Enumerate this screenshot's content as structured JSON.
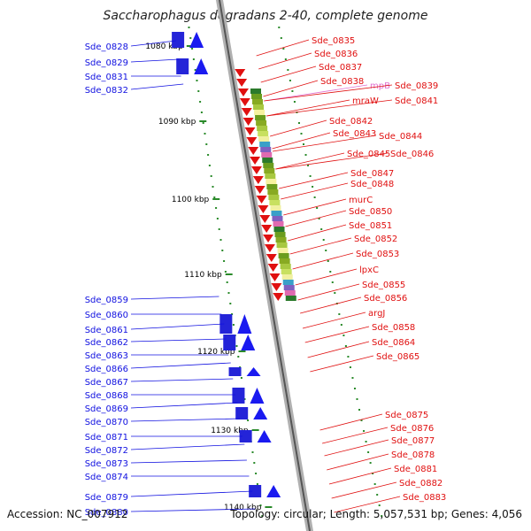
{
  "header": {
    "title": "Saccharophagus degradans 2-40, complete genome"
  },
  "footer": {
    "accession": "Accession: NC_007912",
    "summary": "Topology: circular; Length: 5,057,531 bp; Genes: 4,056"
  },
  "colors": {
    "left_genes": "#1010e0",
    "right_genes": "#e01010",
    "pink_gene": "#e070d0",
    "green_tick": "#2a8a2a",
    "backbone": "#888888"
  },
  "scale_labels": [
    "1080 kbp",
    "1090 kbp",
    "1100 kbp",
    "1110 kbp",
    "1120 kbp",
    "1130 kbp",
    "1140 kbp"
  ],
  "left_genes": [
    "Sde_0828",
    "Sde_0829",
    "Sde_0831",
    "Sde_0832",
    "Sde_0859",
    "Sde_0860",
    "Sde_0861",
    "Sde_0862",
    "Sde_0863",
    "Sde_0866",
    "Sde_0867",
    "Sde_0868",
    "Sde_0869",
    "Sde_0870",
    "Sde_0871",
    "Sde_0872",
    "Sde_0873",
    "Sde_0874",
    "Sde_0879",
    "Sde_0880"
  ],
  "right_genes": [
    "Sde_0835",
    "Sde_0836",
    "Sde_0837",
    "Sde_0838",
    "mpB",
    "Sde_0839",
    "mraW",
    "Sde_0841",
    "Sde_0842",
    "Sde_0843",
    "Sde_0844",
    "Sde_0845",
    "Sde_0846",
    "Sde_0847",
    "Sde_0848",
    "murC",
    "Sde_0850",
    "Sde_0851",
    "Sde_0852",
    "Sde_0853",
    "lpxC",
    "Sde_0855",
    "Sde_0856",
    "argJ",
    "Sde_0858",
    "Sde_0864",
    "Sde_0865",
    "Sde_0875",
    "Sde_0876",
    "Sde_0877",
    "Sde_0878",
    "Sde_0881",
    "Sde_0882",
    "Sde_0883"
  ]
}
